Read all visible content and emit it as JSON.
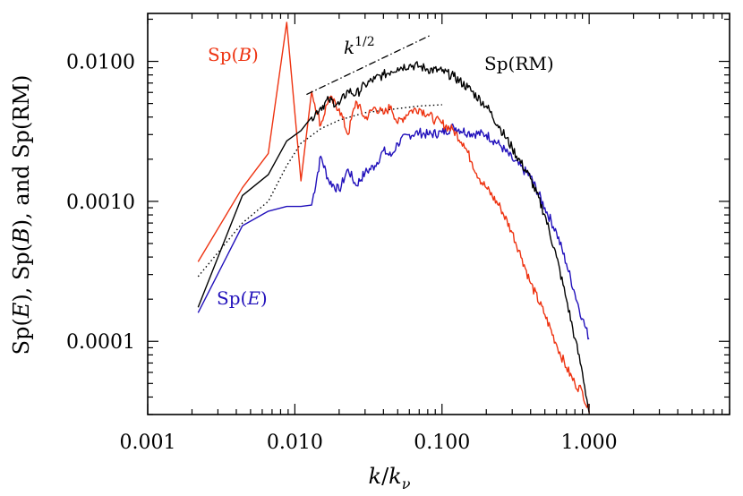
{
  "chart_data": {
    "type": "line",
    "title": "",
    "xlabel": "k/k_ν",
    "ylabel": "Sp(E), Sp(B), and Sp(RM)",
    "xscale": "log",
    "yscale": "log",
    "xlim": [
      0.001,
      9.0
    ],
    "ylim": [
      3e-05,
      0.022
    ],
    "grid": false,
    "x_ticks": [
      0.001,
      0.01,
      0.1,
      1.0
    ],
    "x_tick_labels": [
      "0.001",
      "0.010",
      "0.100",
      "1.000"
    ],
    "y_ticks": [
      0.0001,
      0.001,
      0.01
    ],
    "y_tick_labels": [
      "0.0001",
      "0.0010",
      "0.0100"
    ],
    "xlabel_parts": {
      "k": "k",
      "slash": "/",
      "sub_k": "k",
      "sub": "ν"
    },
    "ylabel_parts": {
      "p1": "Sp(",
      "e": "E",
      "p2": "), Sp(",
      "b": "B",
      "p3": "), and Sp(RM)"
    },
    "annotation": {
      "base": "k",
      "exponent": "1/2",
      "from": [
        0.012,
        0.0058
      ],
      "to": [
        0.085,
        0.0155
      ]
    },
    "series": [
      {
        "name": "Sp(B)",
        "label_parts": {
          "pre": "Sp(",
          "var": "B",
          "post": ")"
        },
        "color": "#ee3311",
        "points": [
          [
            0.0022,
            0.00037
          ],
          [
            0.0044,
            0.00125
          ],
          [
            0.0066,
            0.0022
          ],
          [
            0.0088,
            0.019
          ],
          [
            0.011,
            0.0014
          ],
          [
            0.013,
            0.0061
          ],
          [
            0.015,
            0.0035
          ],
          [
            0.017,
            0.0055
          ],
          [
            0.02,
            0.0046
          ],
          [
            0.023,
            0.003
          ],
          [
            0.026,
            0.0052
          ],
          [
            0.03,
            0.0039
          ],
          [
            0.035,
            0.0047
          ],
          [
            0.04,
            0.0042
          ],
          [
            0.045,
            0.0048
          ],
          [
            0.05,
            0.0036
          ],
          [
            0.06,
            0.0044
          ],
          [
            0.07,
            0.0046
          ],
          [
            0.08,
            0.0042
          ],
          [
            0.09,
            0.0038
          ],
          [
            0.1,
            0.0036
          ],
          [
            0.12,
            0.0032
          ],
          [
            0.14,
            0.0026
          ],
          [
            0.16,
            0.0019
          ],
          [
            0.18,
            0.00145
          ],
          [
            0.2,
            0.00125
          ],
          [
            0.25,
            0.0009
          ],
          [
            0.3,
            0.0006
          ],
          [
            0.35,
            0.00039
          ],
          [
            0.4,
            0.00026
          ],
          [
            0.5,
            0.000155
          ],
          [
            0.6,
            9.5e-05
          ],
          [
            0.7,
            6.5e-05
          ],
          [
            0.8,
            5e-05
          ],
          [
            0.9,
            4.4e-05
          ],
          [
            1.0,
            3.1e-05
          ]
        ]
      },
      {
        "name": "Sp(RM)",
        "label_parts": {
          "pre": "Sp(",
          "var": "RM",
          "post": ")"
        },
        "color": "#000000",
        "points": [
          [
            0.0022,
            0.000175
          ],
          [
            0.0044,
            0.0011
          ],
          [
            0.0066,
            0.00155
          ],
          [
            0.0088,
            0.0027
          ],
          [
            0.011,
            0.0032
          ],
          [
            0.013,
            0.004
          ],
          [
            0.015,
            0.0047
          ],
          [
            0.017,
            0.0053
          ],
          [
            0.02,
            0.0049
          ],
          [
            0.023,
            0.0062
          ],
          [
            0.026,
            0.0058
          ],
          [
            0.03,
            0.0068
          ],
          [
            0.035,
            0.0075
          ],
          [
            0.04,
            0.008
          ],
          [
            0.045,
            0.0085
          ],
          [
            0.05,
            0.009
          ],
          [
            0.06,
            0.0094
          ],
          [
            0.07,
            0.0092
          ],
          [
            0.08,
            0.0088
          ],
          [
            0.1,
            0.0085
          ],
          [
            0.12,
            0.0078
          ],
          [
            0.15,
            0.0065
          ],
          [
            0.2,
            0.0048
          ],
          [
            0.25,
            0.0033
          ],
          [
            0.3,
            0.0024
          ],
          [
            0.4,
            0.00145
          ],
          [
            0.5,
            0.0008
          ],
          [
            0.6,
            0.0004
          ],
          [
            0.7,
            0.0002
          ],
          [
            0.8,
            0.000105
          ],
          [
            0.9,
            6e-05
          ],
          [
            1.0,
            3.1e-05
          ]
        ]
      },
      {
        "name": "Sp(E)",
        "label_parts": {
          "pre": "Sp(",
          "var": "E",
          "post": ")"
        },
        "color": "#2211bb",
        "points": [
          [
            0.0022,
            0.00016
          ],
          [
            0.0044,
            0.00067
          ],
          [
            0.0066,
            0.00085
          ],
          [
            0.0088,
            0.00092
          ],
          [
            0.011,
            0.00092
          ],
          [
            0.013,
            0.00094
          ],
          [
            0.015,
            0.0021
          ],
          [
            0.017,
            0.0014
          ],
          [
            0.02,
            0.0012
          ],
          [
            0.023,
            0.0017
          ],
          [
            0.026,
            0.0013
          ],
          [
            0.03,
            0.0016
          ],
          [
            0.035,
            0.0018
          ],
          [
            0.04,
            0.0023
          ],
          [
            0.045,
            0.0021
          ],
          [
            0.05,
            0.0026
          ],
          [
            0.06,
            0.003
          ],
          [
            0.07,
            0.0031
          ],
          [
            0.08,
            0.003
          ],
          [
            0.1,
            0.0031
          ],
          [
            0.12,
            0.0034
          ],
          [
            0.15,
            0.0031
          ],
          [
            0.2,
            0.003
          ],
          [
            0.25,
            0.0025
          ],
          [
            0.3,
            0.002
          ],
          [
            0.4,
            0.0015
          ],
          [
            0.5,
            0.0009
          ],
          [
            0.6,
            0.0006
          ],
          [
            0.7,
            0.00036
          ],
          [
            0.8,
            0.00022
          ],
          [
            0.9,
            0.000145
          ],
          [
            1.0,
            0.000105
          ]
        ]
      },
      {
        "name": "",
        "style": "dotted",
        "color": "#000000",
        "points": [
          [
            0.0022,
            0.00029
          ],
          [
            0.0044,
            0.0007
          ],
          [
            0.0066,
            0.001
          ],
          [
            0.0088,
            0.0018
          ],
          [
            0.011,
            0.0026
          ],
          [
            0.015,
            0.0033
          ],
          [
            0.02,
            0.0038
          ],
          [
            0.03,
            0.0043
          ],
          [
            0.05,
            0.0046
          ],
          [
            0.07,
            0.0048
          ],
          [
            0.1,
            0.0049
          ]
        ]
      }
    ]
  }
}
